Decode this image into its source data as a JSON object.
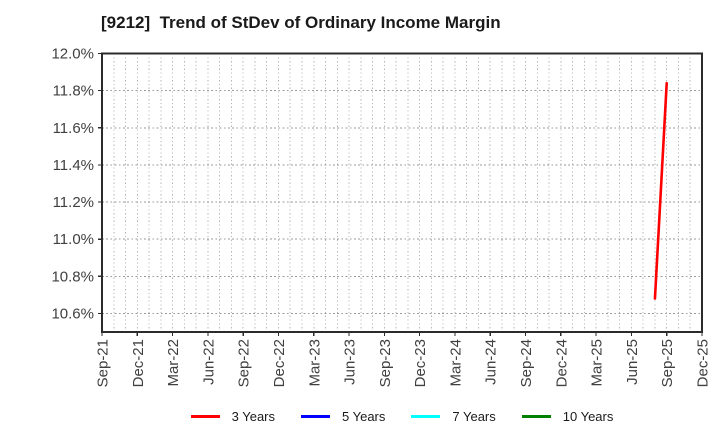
{
  "chart_data": {
    "type": "line",
    "title": "[9212]  Trend of StDev of Ordinary Income Margin",
    "xlabel": "",
    "ylabel": "",
    "y_axis": {
      "min": 10.5,
      "max": 12.0,
      "tick_values": [
        10.6,
        10.8,
        11.0,
        11.2,
        11.4,
        11.6,
        11.8,
        12.0
      ],
      "tick_labels": [
        "10.6%",
        "10.8%",
        "11.0%",
        "11.2%",
        "11.4%",
        "11.6%",
        "11.8%",
        "12.0%"
      ],
      "unit": "%"
    },
    "x_axis": {
      "start": "Sep-21",
      "end": "Dec-25",
      "months_total": 51,
      "tick_every_months": 3,
      "tick_labels": [
        "Sep-21",
        "Dec-21",
        "Mar-22",
        "Jun-22",
        "Sep-22",
        "Dec-22",
        "Mar-23",
        "Jun-23",
        "Sep-23",
        "Dec-23",
        "Mar-24",
        "Jun-24",
        "Sep-24",
        "Dec-24",
        "Mar-25",
        "Jun-25",
        "Sep-25",
        "Dec-25"
      ],
      "minor_grid": "monthly"
    },
    "grid": {
      "on": true,
      "horizontal_style": "dotted",
      "vertical_style": "dotted",
      "color": "#9e9e9e"
    },
    "frame_color": "#2b2b2b",
    "tick_label_color": "#404040",
    "series": [
      {
        "name": "3 Years",
        "color": "#ff0000",
        "points": [
          {
            "x_label": "Aug-25",
            "month_index": 47,
            "value_pct": 10.68
          },
          {
            "x_label": "Sep-25",
            "month_index": 48,
            "value_pct": 11.84
          }
        ]
      },
      {
        "name": "5 Years",
        "color": "#0000ff",
        "points": []
      },
      {
        "name": "7 Years",
        "color": "#00ffff",
        "points": []
      },
      {
        "name": "10 Years",
        "color": "#008000",
        "points": []
      }
    ],
    "legend_position": "bottom-center"
  }
}
